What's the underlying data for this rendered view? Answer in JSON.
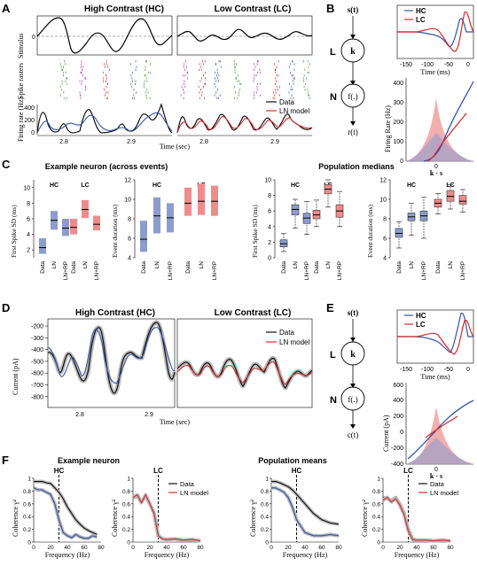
{
  "colors": {
    "hc": "#3353a6",
    "lc": "#d62a2a",
    "data": "#111111",
    "hcFill": "#8d9ccd",
    "lcFill": "#ee8c8c",
    "band": "#b8b8b8"
  },
  "panels": {
    "A": "A",
    "B": "B",
    "C": "C",
    "D": "D",
    "E": "E",
    "F": "F"
  },
  "A": {
    "hc_title": "High Contrast (HC)",
    "lc_title": "Low Contrast (LC)",
    "ylabel_stimulus": "Stimulus",
    "ylabel_rasters": "Spike rasters",
    "ylabel_rate": "Firing rate (Hz)",
    "xlabel": "Time (sec)",
    "tick_28": "2.8",
    "tick_29": "2.9",
    "y_zero": "0",
    "y400": "400",
    "y200": "200",
    "y0": "0",
    "legend_data": "Data",
    "legend_ln": "LN model"
  },
  "B": {
    "legend_hc": "HC",
    "legend_lc": "LC",
    "x_ticks": [
      "-150",
      "-100",
      "-50",
      "0"
    ],
    "xlabel": "Time (ms)",
    "ylabel": "Firing Rate (Hz)",
    "y_ticks": [
      "400",
      "300",
      "200",
      "100",
      "0"
    ],
    "x0": "0",
    "ks": "k · s",
    "in": "s(t)",
    "k": "k",
    "L": "L",
    "N": "N",
    "f": "f(.)",
    "out": "r(t)"
  },
  "C": {
    "left_title": "Example neuron (across events)",
    "right_title": "Population medians",
    "hc": "HC",
    "lc": "LC",
    "ylabel_fs": "First Spike SD (ms)",
    "ylabel_ed": "Event duration (ms)",
    "cats": [
      "Data",
      "LN",
      "LN+RP"
    ],
    "fs_ticks_ex": [
      "2",
      "4",
      "6",
      "8",
      "10"
    ],
    "ed_ticks_ex": [
      "4",
      "6",
      "8",
      "10",
      "12"
    ],
    "fs_ticks_pop": [
      "0",
      "2",
      "4",
      "6",
      "8",
      "10"
    ],
    "ed_ticks_pop": [
      "4",
      "6",
      "8",
      "10",
      "12"
    ]
  },
  "D": {
    "hc_title": "High Contrast (HC)",
    "lc_title": "Low Contrast (LC)",
    "ylabel": "Current (pA)",
    "y_ticks": [
      "-200",
      "-300",
      "-400",
      "-500",
      "-600",
      "-700",
      "-800"
    ],
    "xlabel": "Time (sec)",
    "tick_28": "2.8",
    "tick_29": "2.9",
    "legend_data": "Data",
    "legend_ln": "LN model"
  },
  "E": {
    "legend_hc": "HC",
    "legend_lc": "LC",
    "x_ticks": [
      "-150",
      "-100",
      "-50",
      "0"
    ],
    "xlabel": "Time (ms)",
    "ylabel": "Current (pA)",
    "y_ticks": [
      "-400",
      "-200",
      "0",
      "200",
      "400",
      "600"
    ],
    "x0": "0",
    "ks": "k · s",
    "in": "s(t)",
    "k": "k",
    "L": "L",
    "N": "N",
    "f": "f(.)",
    "out": "c(t)"
  },
  "F": {
    "left_title": "Example neuron",
    "right_title": "Population means",
    "hc": "HC",
    "lc": "LC",
    "ylabel": "Coherence γ²",
    "xlabel": "Frequency (Hz)",
    "y_ticks": [
      "0",
      "0.2",
      "0.4",
      "0.6",
      "0.8",
      "1"
    ],
    "x_ticks": [
      "0",
      "20",
      "40",
      "60",
      "80"
    ],
    "legend_data": "Data",
    "legend_ln": "LN model"
  },
  "chart_data": [
    {
      "panel": "B-top",
      "type": "line",
      "x_ticks": [
        -150,
        -100,
        -50,
        0
      ],
      "xlabel": "Time (ms)",
      "series": [
        {
          "name": "HC",
          "x": [
            -150,
            -120,
            -100,
            -80,
            -60,
            -50,
            -40,
            -30,
            -20,
            -10,
            0
          ],
          "y": [
            0,
            0.05,
            0.1,
            -0.2,
            -0.6,
            -0.9,
            -0.5,
            0.4,
            1,
            0.3,
            0
          ]
        },
        {
          "name": "LC",
          "x": [
            -150,
            -120,
            -100,
            -80,
            -60,
            -50,
            -40,
            -30,
            -20,
            -10,
            0
          ],
          "y": [
            0,
            0.05,
            0.25,
            0.2,
            -0.1,
            -0.5,
            -0.9,
            -0.3,
            0.8,
            1,
            0
          ]
        }
      ]
    },
    {
      "panel": "B-bottom",
      "type": "line",
      "ylabel": "Firing Rate (Hz)",
      "ylim": [
        0,
        400
      ],
      "series": [
        {
          "name": "HC",
          "x": [
            -2,
            -1,
            0,
            1,
            2,
            3
          ],
          "y": [
            0,
            0,
            40,
            160,
            280,
            380
          ]
        },
        {
          "name": "LC",
          "x": [
            -2,
            -1,
            0,
            1,
            2,
            3
          ],
          "y": [
            0,
            5,
            60,
            120,
            180,
            230
          ]
        }
      ]
    },
    {
      "panel": "C-example-FS",
      "type": "box",
      "ylabel": "First Spike SD (ms)",
      "ylim": [
        1,
        11
      ],
      "series": [
        {
          "name": "HC",
          "values": [
            {
              "lo": 1.5,
              "med": 2.3,
              "hi": 3.5
            },
            {
              "lo": 4.6,
              "med": 5.8,
              "hi": 7.0
            },
            {
              "lo": 3.8,
              "med": 4.8,
              "hi": 6.0
            }
          ]
        },
        {
          "name": "LC",
          "values": [
            {
              "lo": 4.0,
              "med": 4.9,
              "hi": 6.0
            },
            {
              "lo": 6.1,
              "med": 7.2,
              "hi": 8.4
            },
            {
              "lo": 4.5,
              "med": 5.3,
              "hi": 6.4
            }
          ]
        }
      ]
    },
    {
      "panel": "C-example-ED",
      "type": "box",
      "ylabel": "Event duration (ms)",
      "ylim": [
        4,
        12
      ],
      "series": [
        {
          "name": "HC",
          "values": [
            {
              "lo": 4.6,
              "med": 5.9,
              "hi": 7.8
            },
            {
              "lo": 6.5,
              "med": 8.3,
              "hi": 10.2
            },
            {
              "lo": 6.6,
              "med": 8.1,
              "hi": 9.6
            }
          ]
        },
        {
          "name": "LC",
          "values": [
            {
              "lo": 8.3,
              "med": 9.6,
              "hi": 11.2
            },
            {
              "lo": 8.4,
              "med": 9.8,
              "hi": 11.6
            },
            {
              "lo": 8.3,
              "med": 9.8,
              "hi": 11.4
            }
          ]
        }
      ]
    },
    {
      "panel": "C-population-FS",
      "type": "box",
      "ylabel": "First Spike SD (ms)",
      "ylim": [
        0,
        10
      ],
      "series": [
        {
          "name": "HC",
          "values": [
            {
              "lo": 0.8,
              "q1": 1.4,
              "med": 1.8,
              "q3": 2.3,
              "hi": 3.1
            },
            {
              "lo": 3.8,
              "q1": 5.5,
              "med": 6.2,
              "q3": 6.8,
              "hi": 7.5
            },
            {
              "lo": 3.0,
              "q1": 4.4,
              "med": 5.1,
              "q3": 5.7,
              "hi": 7.2
            }
          ]
        },
        {
          "name": "LC",
          "values": [
            {
              "lo": 4.0,
              "q1": 5.0,
              "med": 5.5,
              "q3": 6.1,
              "hi": 7.4
            },
            {
              "lo": 6.5,
              "q1": 8.2,
              "med": 8.8,
              "q3": 9.4,
              "hi": 10.0
            },
            {
              "lo": 4.0,
              "q1": 5.2,
              "med": 6.0,
              "q3": 6.8,
              "hi": 8.5
            }
          ]
        }
      ]
    },
    {
      "panel": "C-population-ED",
      "type": "box",
      "ylabel": "Event duration (ms)",
      "ylim": [
        4,
        12
      ],
      "series": [
        {
          "name": "HC",
          "values": [
            {
              "lo": 5.0,
              "q1": 6.1,
              "med": 6.5,
              "q3": 7.0,
              "hi": 7.7
            },
            {
              "lo": 6.3,
              "q1": 7.8,
              "med": 8.2,
              "q3": 8.6,
              "hi": 9.6
            },
            {
              "lo": 6.0,
              "q1": 7.8,
              "med": 8.3,
              "q3": 8.8,
              "hi": 10.2
            }
          ]
        },
        {
          "name": "LC",
          "values": [
            {
              "lo": 8.5,
              "q1": 9.2,
              "med": 9.6,
              "q3": 10.0,
              "hi": 10.6
            },
            {
              "lo": 9.0,
              "q1": 9.8,
              "med": 10.3,
              "q3": 10.9,
              "hi": 11.5
            },
            {
              "lo": 8.7,
              "q1": 9.5,
              "med": 9.8,
              "q3": 10.4,
              "hi": 11.0
            }
          ]
        }
      ]
    },
    {
      "panel": "E-bottom",
      "type": "line",
      "ylabel": "Current (pA)",
      "ylim": [
        -400,
        600
      ],
      "series": [
        {
          "name": "HC",
          "x": [
            -2,
            -1,
            0,
            1,
            2,
            3
          ],
          "y": [
            -380,
            -150,
            50,
            280,
            450,
            560
          ]
        },
        {
          "name": "LC",
          "x": [
            -1,
            -0.5,
            0,
            0.5,
            1
          ],
          "y": [
            100,
            170,
            240,
            300,
            340
          ]
        }
      ]
    },
    {
      "panel": "F-example-HC",
      "type": "line",
      "xlabel": "Frequency (Hz)",
      "ylabel": "Coherence γ²",
      "ylim": [
        0,
        1
      ],
      "series": [
        {
          "name": "Data",
          "x": [
            0,
            5,
            10,
            15,
            20,
            25,
            30,
            35,
            40,
            45,
            50,
            55,
            60,
            65,
            70,
            75
          ],
          "y": [
            0.95,
            0.95,
            0.95,
            0.93,
            0.92,
            0.85,
            0.78,
            0.68,
            0.55,
            0.45,
            0.35,
            0.28,
            0.22,
            0.18,
            0.15,
            0.12
          ]
        },
        {
          "name": "LN model",
          "x": [
            0,
            5,
            10,
            15,
            20,
            25,
            30,
            35,
            40,
            45,
            50,
            55,
            60,
            65,
            70,
            75
          ],
          "y": [
            0.85,
            0.82,
            0.82,
            0.78,
            0.75,
            0.6,
            0.35,
            0.15,
            0.1,
            0.07,
            0.12,
            0.08,
            0.06,
            0.06,
            0.1,
            0.08
          ]
        }
      ]
    },
    {
      "panel": "F-example-LC",
      "type": "line",
      "xlabel": "Frequency (Hz)",
      "ylabel": "Coherence γ²",
      "ylim": [
        0,
        1
      ],
      "series": [
        {
          "name": "Data",
          "x": [
            0,
            5,
            10,
            15,
            20,
            25,
            30,
            35,
            40,
            50,
            60,
            70,
            80
          ],
          "y": [
            0.7,
            0.72,
            0.63,
            0.72,
            0.6,
            0.45,
            0.1,
            0.05,
            0.04,
            0.05,
            0.03,
            0.04,
            0.02
          ]
        },
        {
          "name": "LN model",
          "x": [
            0,
            5,
            10,
            15,
            20,
            25,
            30,
            35,
            40,
            50,
            60,
            70,
            80
          ],
          "y": [
            0.7,
            0.74,
            0.62,
            0.74,
            0.6,
            0.45,
            0.1,
            0.05,
            0.04,
            0.05,
            0.03,
            0.04,
            0.02
          ]
        }
      ]
    },
    {
      "panel": "F-population-HC",
      "type": "line",
      "xlabel": "Frequency (Hz)",
      "ylabel": "Coherence γ²",
      "ylim": [
        0,
        1
      ],
      "series": [
        {
          "name": "Data",
          "x": [
            0,
            5,
            10,
            15,
            20,
            25,
            30,
            40,
            50,
            60,
            70,
            80
          ],
          "y": [
            0.95,
            0.95,
            0.93,
            0.9,
            0.87,
            0.82,
            0.75,
            0.6,
            0.45,
            0.35,
            0.3,
            0.28
          ]
        },
        {
          "name": "LN model",
          "x": [
            0,
            5,
            10,
            15,
            20,
            25,
            30,
            40,
            50,
            60,
            70,
            80
          ],
          "y": [
            0.85,
            0.85,
            0.82,
            0.78,
            0.7,
            0.55,
            0.35,
            0.15,
            0.1,
            0.1,
            0.12,
            0.1
          ]
        }
      ]
    },
    {
      "panel": "F-population-LC",
      "type": "line",
      "xlabel": "Frequency (Hz)",
      "ylabel": "Coherence γ²",
      "ylim": [
        0,
        1
      ],
      "series": [
        {
          "name": "Data",
          "x": [
            0,
            5,
            10,
            15,
            20,
            25,
            30,
            35,
            40,
            50,
            60,
            70,
            80
          ],
          "y": [
            0.7,
            0.68,
            0.65,
            0.7,
            0.6,
            0.45,
            0.2,
            0.05,
            0.03,
            0.03,
            0.02,
            0.03,
            0.02
          ]
        },
        {
          "name": "LN model",
          "x": [
            0,
            5,
            10,
            15,
            20,
            25,
            30,
            35,
            40,
            50,
            60,
            70,
            80
          ],
          "y": [
            0.66,
            0.7,
            0.63,
            0.68,
            0.58,
            0.43,
            0.18,
            0.04,
            0.03,
            0.03,
            0.02,
            0.03,
            0.02
          ]
        }
      ]
    }
  ]
}
